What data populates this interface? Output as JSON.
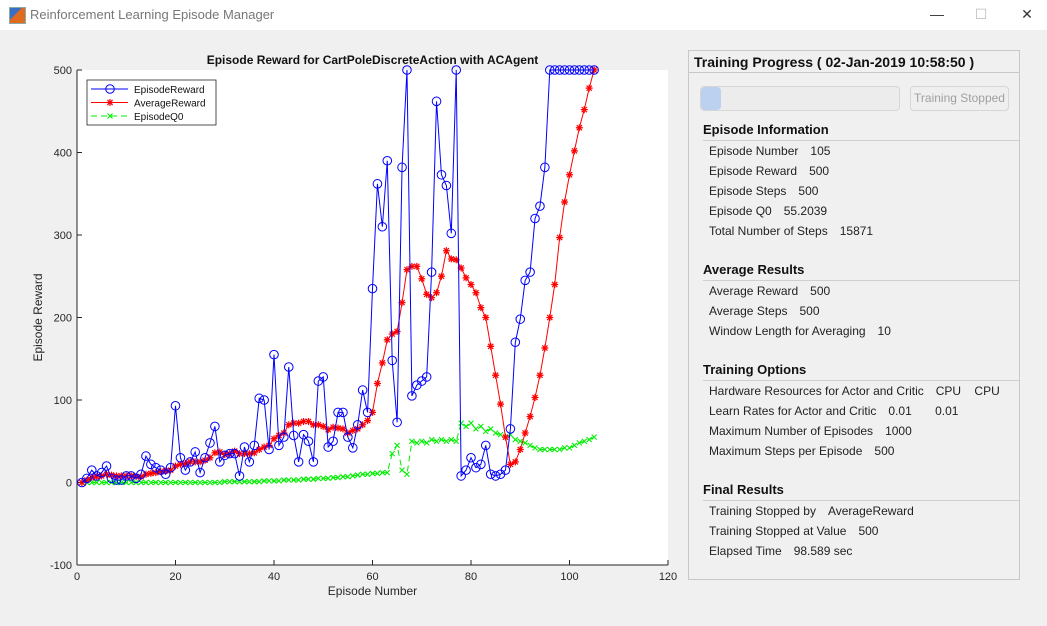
{
  "window": {
    "title": "Reinforcement Learning Episode Manager",
    "minimize": "—",
    "maximize": "☐",
    "close": "✕"
  },
  "chart_data": {
    "type": "line",
    "title": "Episode Reward for CartPoleDiscreteAction with ACAgent",
    "xlabel": "Episode Number",
    "ylabel": "Episode Reward",
    "xlim": [
      0,
      120
    ],
    "ylim": [
      -100,
      500
    ],
    "xticks": [
      0,
      20,
      40,
      60,
      80,
      100,
      120
    ],
    "yticks": [
      -100,
      0,
      100,
      200,
      300,
      400,
      500
    ],
    "legend_position": "top-left",
    "grid": false,
    "x_start": 1,
    "series": [
      {
        "name": "EpisodeReward",
        "color": "#0000ff",
        "marker": "circle",
        "line": "solid",
        "values": [
          0,
          5,
          15,
          8,
          12,
          20,
          5,
          3,
          3,
          8,
          8,
          5,
          10,
          32,
          22,
          18,
          15,
          10,
          18,
          93,
          30,
          15,
          25,
          37,
          12,
          30,
          48,
          68,
          25,
          33,
          35,
          35,
          8,
          43,
          25,
          45,
          102,
          100,
          40,
          155,
          45,
          55,
          140,
          57,
          25,
          58,
          50,
          25,
          123,
          128,
          43,
          50,
          85,
          85,
          55,
          42,
          70,
          112,
          85,
          235,
          362,
          310,
          390,
          148,
          73,
          382,
          500,
          105,
          118,
          123,
          128,
          255,
          462,
          373,
          360,
          302,
          500,
          8,
          15,
          30,
          18,
          22,
          45,
          10,
          8,
          10,
          15,
          65,
          170,
          198,
          245,
          255,
          320,
          335,
          382,
          500,
          500,
          500,
          500,
          500,
          500,
          500,
          500,
          500,
          500
        ]
      },
      {
        "name": "AverageReward",
        "color": "#ff0000",
        "marker": "star",
        "line": "solid",
        "values": [
          0,
          3,
          6,
          7,
          8,
          10,
          9,
          8,
          8,
          8,
          8,
          7,
          7,
          10,
          11,
          12,
          13,
          14,
          15,
          20,
          22,
          23,
          25,
          25,
          25,
          27,
          30,
          36,
          37,
          34,
          35,
          38,
          35,
          35,
          35,
          36,
          40,
          43,
          45,
          53,
          57,
          60,
          70,
          72,
          72,
          74,
          74,
          70,
          70,
          68,
          64,
          67,
          66,
          65,
          60,
          63,
          65,
          70,
          75,
          85,
          120,
          145,
          173,
          180,
          183,
          218,
          258,
          262,
          262,
          247,
          228,
          224,
          230,
          250,
          281,
          271,
          270,
          260,
          248,
          240,
          230,
          212,
          200,
          165,
          130,
          95,
          55,
          22,
          25,
          40,
          60,
          80,
          103,
          130,
          163,
          200,
          240,
          297,
          340,
          373,
          402,
          430,
          452,
          478,
          500
        ]
      },
      {
        "name": "EpisodeQ0",
        "color": "#00ee00",
        "marker": "x",
        "line": "dashed",
        "values": [
          0,
          0,
          0,
          0,
          0,
          0,
          0,
          0,
          0,
          0,
          0,
          0,
          0,
          0,
          0,
          0,
          0,
          0,
          0,
          0,
          0,
          0,
          0,
          0,
          0,
          0,
          0,
          0,
          0,
          1,
          1,
          1,
          1,
          1,
          1,
          1,
          1,
          2,
          2,
          2,
          2,
          3,
          3,
          3,
          3,
          4,
          4,
          4,
          5,
          5,
          5,
          6,
          6,
          7,
          7,
          8,
          9,
          10,
          10,
          11,
          11,
          12,
          12,
          35,
          45,
          15,
          10,
          50,
          48,
          50,
          48,
          52,
          50,
          52,
          50,
          52,
          50,
          72,
          68,
          72,
          65,
          68,
          62,
          65,
          60,
          58,
          55,
          58,
          52,
          50,
          48,
          45,
          42,
          40,
          40,
          40,
          40,
          40,
          42,
          42,
          45,
          48,
          50,
          52,
          55
        ]
      }
    ]
  },
  "panel": {
    "title": "Training Progress ( 02-Jan-2019 10:58:50 )",
    "progress_fraction": 0.1,
    "stop_button": "Training Stopped",
    "sections": [
      {
        "title": "Episode Information",
        "rows": [
          {
            "label": "Episode Number",
            "value": "105"
          },
          {
            "label": "Episode Reward",
            "value": "500"
          },
          {
            "label": "Episode Steps",
            "value": "500"
          },
          {
            "label": "Episode Q0",
            "value": "55.2039"
          },
          {
            "label": "Total Number of Steps",
            "value": "15871"
          }
        ]
      },
      {
        "title": "Average Results",
        "rows": [
          {
            "label": "Average Reward",
            "value": "500"
          },
          {
            "label": "Average Steps",
            "value": "500"
          },
          {
            "label": "Window Length for Averaging",
            "value": "10"
          }
        ]
      },
      {
        "title": "Training Options",
        "rows": [
          {
            "label": "Hardware Resources for Actor and Critic",
            "value": "CPU    CPU"
          },
          {
            "label": "Learn Rates for Actor and Critic",
            "value": "0.01       0.01"
          },
          {
            "label": "Maximum Number of Episodes",
            "value": "1000"
          },
          {
            "label": "Maximum Steps per Episode",
            "value": "500"
          }
        ]
      },
      {
        "title": "Final Results",
        "rows": [
          {
            "label": "Training Stopped by",
            "value": "AverageReward"
          },
          {
            "label": "Training Stopped at Value",
            "value": "500"
          },
          {
            "label": "Elapsed Time",
            "value": "98.589 sec"
          }
        ]
      }
    ]
  }
}
